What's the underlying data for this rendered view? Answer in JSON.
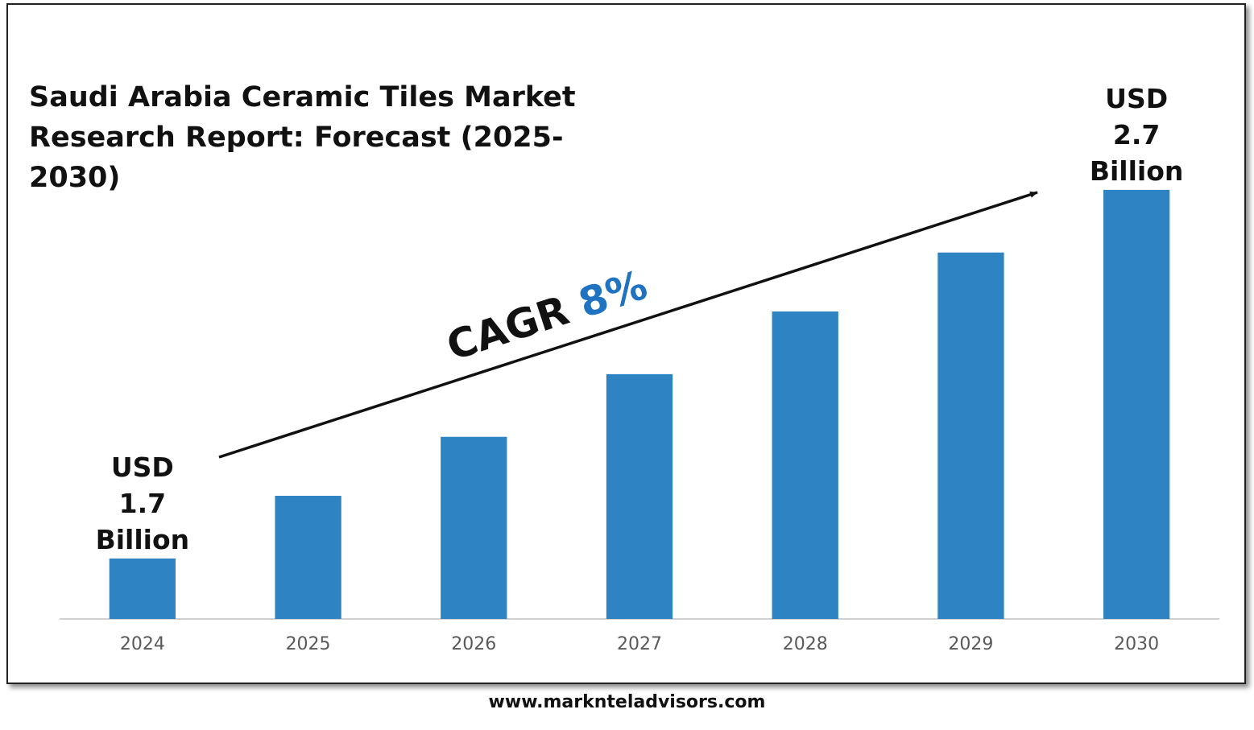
{
  "chart_data": {
    "type": "bar",
    "title": "Saudi Arabia Ceramic Tiles Market Research Report: Forecast (2025-2030)",
    "categories": [
      "2024",
      "2025",
      "2026",
      "2027",
      "2028",
      "2029",
      "2030"
    ],
    "values": [
      1.7,
      1.87,
      2.03,
      2.2,
      2.37,
      2.53,
      2.7
    ],
    "value_labels": [
      "USD 1.7 Billion",
      null,
      null,
      null,
      null,
      null,
      "USD 2.7 Billion"
    ],
    "color": "#2e83c3",
    "ylim": [
      1.536,
      2.8
    ],
    "annotation": {
      "label": "CAGR",
      "value": "8%",
      "value_color": "#1f73c0"
    },
    "source": "www.marknteladvisors.com"
  }
}
